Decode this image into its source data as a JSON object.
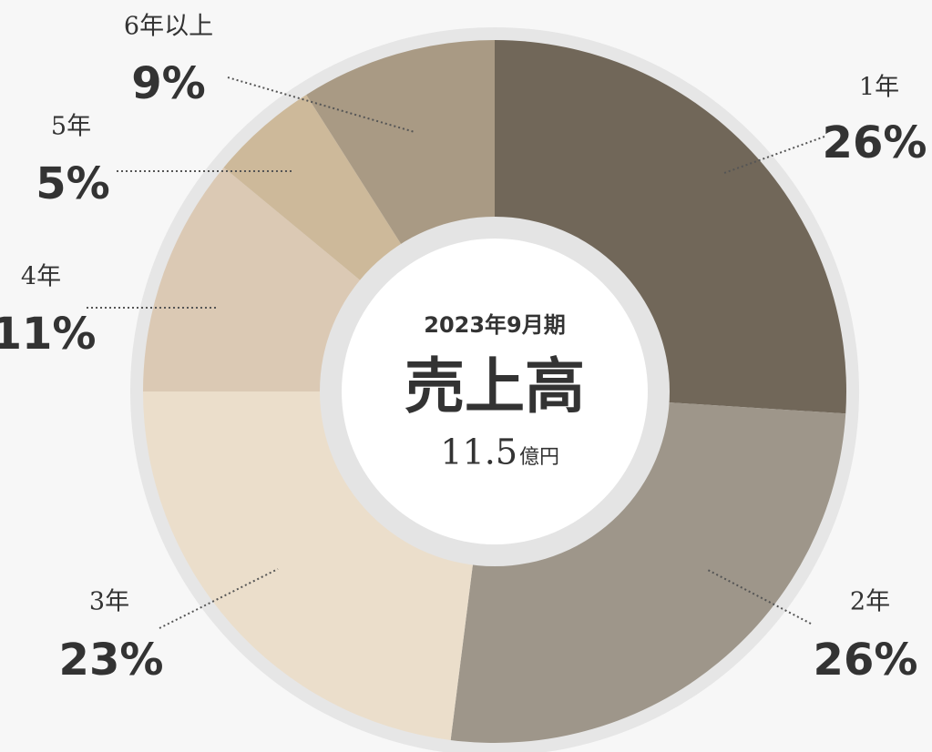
{
  "chart_data": {
    "type": "donut",
    "categories": [
      "1年",
      "2年",
      "3年",
      "4年",
      "5年",
      "6年以上"
    ],
    "values": [
      26,
      26,
      23,
      11,
      5,
      9
    ],
    "value_labels": [
      "26%",
      "26%",
      "23%",
      "11%",
      "5%",
      "9%"
    ],
    "colors": [
      "#716759",
      "#9e968a",
      "#ebdecb",
      "#dbc9b4",
      "#cdb99a",
      "#a99a84"
    ],
    "center_subtitle": "2023年9月期",
    "center_title": "売上高",
    "center_value": "11.5",
    "center_unit": "億円"
  }
}
